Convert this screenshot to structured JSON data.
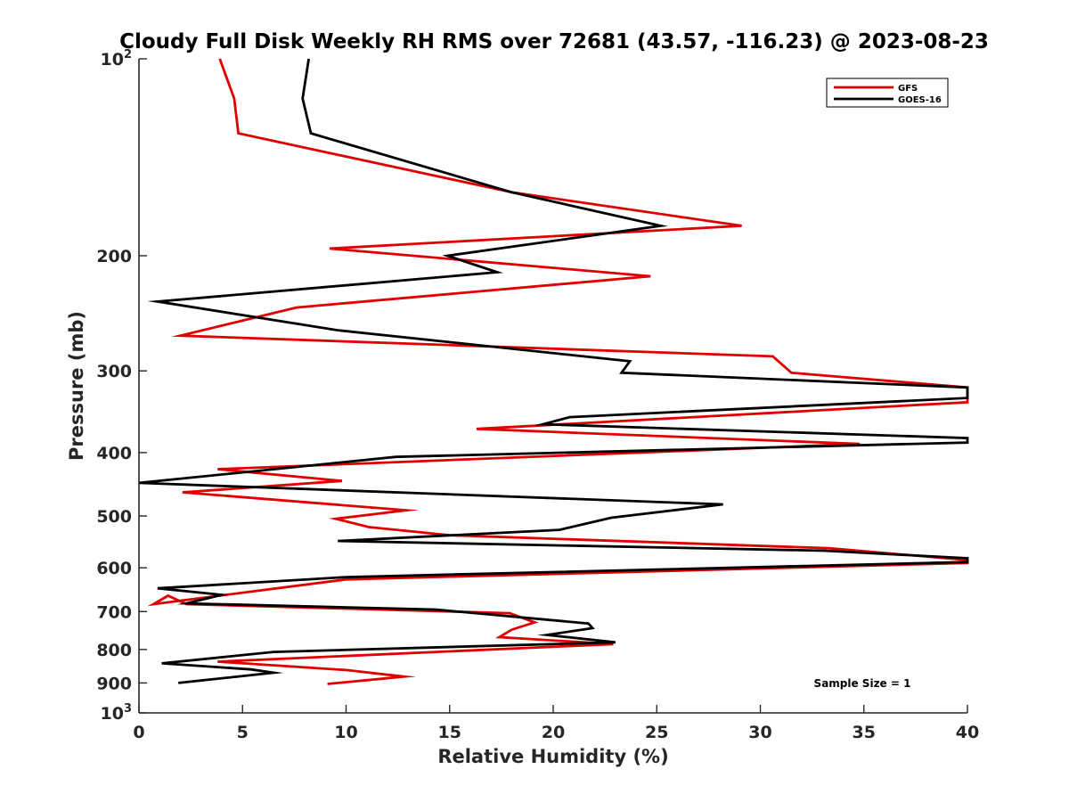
{
  "chart_data": {
    "type": "line",
    "title": "Cloudy Full Disk Weekly RH RMS over 72681 (43.57, -116.23) @ 2023-08-23",
    "xlabel": "Relative Humidity (%)",
    "ylabel": "Pressure (mb)",
    "xlim": [
      0,
      40
    ],
    "ylim": [
      100,
      1000
    ],
    "yscale": "log",
    "y_reversed": true,
    "x_ticks": [
      "0",
      "5",
      "10",
      "15",
      "20",
      "25",
      "30",
      "35",
      "40"
    ],
    "y_ticks": [
      {
        "value": 100,
        "base": "10",
        "exp": "2"
      },
      {
        "value": 200,
        "label": "200"
      },
      {
        "value": 300,
        "label": "300"
      },
      {
        "value": 400,
        "label": "400"
      },
      {
        "value": 500,
        "label": "500"
      },
      {
        "value": 600,
        "label": "600"
      },
      {
        "value": 700,
        "label": "700"
      },
      {
        "value": 800,
        "label": "800"
      },
      {
        "value": 900,
        "label": "900"
      },
      {
        "value": 1000,
        "base": "10",
        "exp": "3"
      }
    ],
    "legend_position": "top-right",
    "annotation": "Sample Size = 1",
    "series": [
      {
        "name": "GFS",
        "color": "#e00000",
        "points": [
          [
            3.9,
            100
          ],
          [
            4.6,
            115
          ],
          [
            4.8,
            130
          ],
          [
            18,
            160
          ],
          [
            29.1,
            180
          ],
          [
            9.2,
            195
          ],
          [
            24.7,
            215
          ],
          [
            7.6,
            240
          ],
          [
            2,
            265
          ],
          [
            30.6,
            285
          ],
          [
            31.5,
            302
          ],
          [
            40,
            318
          ],
          [
            40,
            335
          ],
          [
            16.3,
            368
          ],
          [
            34.8,
            388
          ],
          [
            3.8,
            424
          ],
          [
            9.8,
            442
          ],
          [
            2.1,
            460
          ],
          [
            12.9,
            490
          ],
          [
            9.5,
            505
          ],
          [
            11.1,
            520
          ],
          [
            15,
            535
          ],
          [
            33.3,
            560
          ],
          [
            40,
            584
          ],
          [
            40,
            590
          ],
          [
            10,
            625
          ],
          [
            0.7,
            682
          ],
          [
            1.4,
            662
          ],
          [
            2.3,
            682
          ],
          [
            17.9,
            704
          ],
          [
            19.1,
            727
          ],
          [
            18,
            746
          ],
          [
            17.4,
            766
          ],
          [
            22.9,
            785
          ],
          [
            3.8,
            835
          ],
          [
            10,
            860
          ],
          [
            12.8,
            880
          ],
          [
            9.1,
            903
          ]
        ]
      },
      {
        "name": "GOES-16",
        "color": "#000000",
        "points": [
          [
            8.2,
            100
          ],
          [
            7.9,
            115
          ],
          [
            8.3,
            130
          ],
          [
            18,
            160
          ],
          [
            25.2,
            180
          ],
          [
            14.9,
            200
          ],
          [
            17.3,
            212
          ],
          [
            0.9,
            235
          ],
          [
            9.6,
            260
          ],
          [
            23.7,
            290
          ],
          [
            23.3,
            302
          ],
          [
            40,
            318
          ],
          [
            40,
            330
          ],
          [
            20.8,
            353
          ],
          [
            19.5,
            362
          ],
          [
            40,
            380
          ],
          [
            40,
            386
          ],
          [
            12.4,
            406
          ],
          [
            0,
            445
          ],
          [
            28.2,
            480
          ],
          [
            22.8,
            503
          ],
          [
            20.3,
            525
          ],
          [
            9.6,
            546
          ],
          [
            33.1,
            565
          ],
          [
            40,
            580
          ],
          [
            40,
            588
          ],
          [
            10,
            620
          ],
          [
            0.9,
            645
          ],
          [
            4,
            660
          ],
          [
            2.3,
            680
          ],
          [
            14.3,
            695
          ],
          [
            21.7,
            730
          ],
          [
            21.9,
            742
          ],
          [
            19.7,
            760
          ],
          [
            23,
            780
          ],
          [
            6.5,
            807
          ],
          [
            1.1,
            840
          ],
          [
            5.4,
            858
          ],
          [
            6.5,
            868
          ],
          [
            1.9,
            900
          ]
        ]
      }
    ]
  }
}
